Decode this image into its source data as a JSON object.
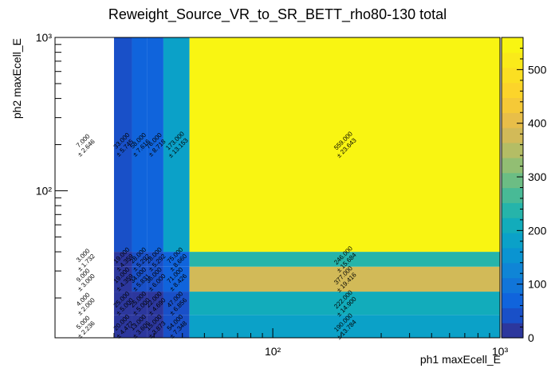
{
  "chart_data": {
    "type": "heatmap",
    "title": "Reweight_Source_VR_to_SR_BETT_rho80-130 total",
    "xlabel": "ph1 maxEcell_E",
    "ylabel": "ph2 maxEcell_E",
    "x_scale": "log",
    "y_scale": "log",
    "xlim": [
      11,
      1000
    ],
    "ylim": [
      11,
      1000
    ],
    "x_major_ticks": [
      100,
      1000
    ],
    "x_major_tick_labels": [
      "10²",
      "10³"
    ],
    "y_major_ticks": [
      100,
      1000
    ],
    "y_major_tick_labels": [
      "10²",
      "10³"
    ],
    "x_edges": [
      11,
      20,
      24,
      28,
      33,
      43,
      1000
    ],
    "y_edges": [
      11,
      15.5,
      22,
      32,
      40,
      1000
    ],
    "zlim": [
      0,
      560
    ],
    "z_ticks": [
      0,
      100,
      200,
      300,
      400,
      500
    ],
    "cells": [
      {
        "xi": 0,
        "yi": 0,
        "value": 5.0,
        "error": 2.236,
        "label": "5.000",
        "elabel": "± 2.236"
      },
      {
        "xi": 1,
        "yi": 0,
        "value": 20.0,
        "error": 4.472,
        "label": "20.000",
        "elabel": "± 4.472"
      },
      {
        "xi": 2,
        "yi": 0,
        "value": 13.0,
        "error": 3.606,
        "label": "13.000",
        "elabel": "± 3.606"
      },
      {
        "xi": 3,
        "yi": 0,
        "value": 15.0,
        "error": 3.873,
        "label": "15.000",
        "elabel": "± 3.873"
      },
      {
        "xi": 4,
        "yi": 0,
        "value": 54.0,
        "error": 7.348,
        "label": "54.000",
        "elabel": "± 7.348"
      },
      {
        "xi": 5,
        "yi": 0,
        "value": 190.0,
        "error": 13.784,
        "label": "190.000",
        "elabel": "± 13.784"
      },
      {
        "xi": 0,
        "yi": 1,
        "value": 4.0,
        "error": 2.0,
        "label": "4.000",
        "elabel": "± 2.000"
      },
      {
        "xi": 1,
        "yi": 1,
        "value": 25.0,
        "error": 5.0,
        "label": "25.000",
        "elabel": "± 5.000"
      },
      {
        "xi": 2,
        "yi": 1,
        "value": 25.0,
        "error": 5.0,
        "label": "25.000",
        "elabel": "± 5.000"
      },
      {
        "xi": 3,
        "yi": 1,
        "value": 22.0,
        "error": 4.69,
        "label": "22.000",
        "elabel": "± 4.690"
      },
      {
        "xi": 4,
        "yi": 1,
        "value": 47.0,
        "error": 6.856,
        "label": "47.000",
        "elabel": "± 6.856"
      },
      {
        "xi": 5,
        "yi": 1,
        "value": 222.0,
        "error": 14.9,
        "label": "222.000",
        "elabel": "± 14.900"
      },
      {
        "xi": 0,
        "yi": 2,
        "value": 9.0,
        "error": 3.0,
        "label": "9.000",
        "elabel": "± 3.000"
      },
      {
        "xi": 1,
        "yi": 2,
        "value": 19.0,
        "error": 4.359,
        "label": "19.000",
        "elabel": "± 4.359"
      },
      {
        "xi": 2,
        "yi": 2,
        "value": 34.0,
        "error": 5.831,
        "label": "34.000",
        "elabel": "± 5.831"
      },
      {
        "xi": 3,
        "yi": 2,
        "value": 36.0,
        "error": 6.0,
        "label": "36.000",
        "elabel": "± 6.000"
      },
      {
        "xi": 4,
        "yi": 2,
        "value": 71.0,
        "error": 8.426,
        "label": "71.000",
        "elabel": "± 8.426"
      },
      {
        "xi": 5,
        "yi": 2,
        "value": 377.0,
        "error": 19.416,
        "label": "377.000",
        "elabel": "± 19.416"
      },
      {
        "xi": 0,
        "yi": 3,
        "value": 3.0,
        "error": 1.732,
        "label": "3.000",
        "elabel": "± 1.732"
      },
      {
        "xi": 1,
        "yi": 3,
        "value": 19.0,
        "error": 4.359,
        "label": "19.000",
        "elabel": "± 4.359"
      },
      {
        "xi": 2,
        "yi": 3,
        "value": 28.0,
        "error": 5.292,
        "label": "28.000",
        "elabel": "± 5.292"
      },
      {
        "xi": 3,
        "yi": 3,
        "value": 28.0,
        "error": 5.292,
        "label": "28.000",
        "elabel": "± 5.292"
      },
      {
        "xi": 4,
        "yi": 3,
        "value": 75.0,
        "error": 8.66,
        "label": "75.000",
        "elabel": "± 8.660"
      },
      {
        "xi": 5,
        "yi": 3,
        "value": 246.0,
        "error": 15.684,
        "label": "246.000",
        "elabel": "± 15.684"
      },
      {
        "xi": 0,
        "yi": 4,
        "value": 7.0,
        "error": 2.646,
        "label": "7.000",
        "elabel": "± 2.646"
      },
      {
        "xi": 1,
        "yi": 4,
        "value": 33.0,
        "error": 5.745,
        "label": "33.000",
        "elabel": "± 5.745"
      },
      {
        "xi": 2,
        "yi": 4,
        "value": 58.0,
        "error": 7.616,
        "label": "58.000",
        "elabel": "± 7.616"
      },
      {
        "xi": 3,
        "yi": 4,
        "value": 76.0,
        "error": 8.718,
        "label": "76.000",
        "elabel": "± 8.718"
      },
      {
        "xi": 4,
        "yi": 4,
        "value": 173.0,
        "error": 13.153,
        "label": "173.000",
        "elabel": "± 13.153"
      },
      {
        "xi": 5,
        "yi": 4,
        "value": 559.0,
        "error": 23.643,
        "label": "559.000",
        "elabel": "± 23.643"
      }
    ]
  }
}
